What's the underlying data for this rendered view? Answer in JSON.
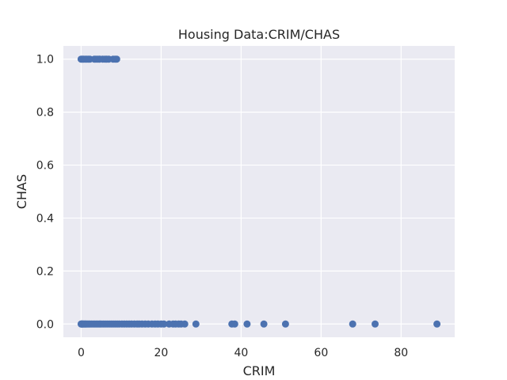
{
  "chart_data": {
    "type": "scatter",
    "title": "Housing Data:CRIM/CHAS",
    "xlabel": "CRIM",
    "ylabel": "CHAS",
    "xlim": [
      -4.44,
      93.41
    ],
    "ylim": [
      -0.05,
      1.05
    ],
    "xticks": [
      0,
      20,
      40,
      60,
      80
    ],
    "yticks": [
      0.0,
      0.2,
      0.4,
      0.6,
      0.8,
      1.0
    ],
    "xtick_labels": [
      "0",
      "20",
      "40",
      "60",
      "80"
    ],
    "ytick_labels": [
      "0.0",
      "0.2",
      "0.4",
      "0.6",
      "0.8",
      "1.0"
    ],
    "grid": true,
    "background": "#eaeaf2",
    "grid_color": "#ffffff",
    "marker_color": "#4c72b0",
    "points": [
      [
        0.0,
        1
      ],
      [
        0.3,
        1
      ],
      [
        0.6,
        1
      ],
      [
        1.0,
        1
      ],
      [
        1.4,
        1
      ],
      [
        1.8,
        1
      ],
      [
        2.2,
        1
      ],
      [
        3.3,
        1
      ],
      [
        3.7,
        1
      ],
      [
        4.2,
        1
      ],
      [
        4.6,
        1
      ],
      [
        5.4,
        1
      ],
      [
        6.0,
        1
      ],
      [
        6.4,
        1
      ],
      [
        6.9,
        1
      ],
      [
        8.0,
        1
      ],
      [
        8.5,
        1
      ],
      [
        8.9,
        1
      ],
      [
        0.0,
        0
      ],
      [
        0.1,
        0
      ],
      [
        0.2,
        0
      ],
      [
        0.3,
        0
      ],
      [
        0.5,
        0
      ],
      [
        0.7,
        0
      ],
      [
        0.9,
        0
      ],
      [
        1.1,
        0
      ],
      [
        1.3,
        0
      ],
      [
        1.6,
        0
      ],
      [
        1.9,
        0
      ],
      [
        2.2,
        0
      ],
      [
        2.6,
        0
      ],
      [
        3.0,
        0
      ],
      [
        3.4,
        0
      ],
      [
        3.8,
        0
      ],
      [
        4.2,
        0
      ],
      [
        4.6,
        0
      ],
      [
        5.0,
        0
      ],
      [
        5.5,
        0
      ],
      [
        6.0,
        0
      ],
      [
        6.5,
        0
      ],
      [
        7.0,
        0
      ],
      [
        7.5,
        0
      ],
      [
        8.0,
        0
      ],
      [
        8.5,
        0
      ],
      [
        9.0,
        0
      ],
      [
        9.5,
        0
      ],
      [
        10.2,
        0
      ],
      [
        10.8,
        0
      ],
      [
        11.4,
        0
      ],
      [
        12.0,
        0
      ],
      [
        12.6,
        0
      ],
      [
        13.3,
        0
      ],
      [
        14.0,
        0
      ],
      [
        14.5,
        0
      ],
      [
        15.2,
        0
      ],
      [
        16.0,
        0
      ],
      [
        16.8,
        0
      ],
      [
        17.7,
        0
      ],
      [
        18.5,
        0
      ],
      [
        19.2,
        0
      ],
      [
        20.0,
        0
      ],
      [
        20.7,
        0
      ],
      [
        22.0,
        0
      ],
      [
        23.0,
        0
      ],
      [
        23.6,
        0
      ],
      [
        24.4,
        0
      ],
      [
        25.0,
        0
      ],
      [
        25.9,
        0
      ],
      [
        28.7,
        0
      ],
      [
        37.7,
        0
      ],
      [
        38.4,
        0
      ],
      [
        41.5,
        0
      ],
      [
        45.7,
        0
      ],
      [
        51.1,
        0
      ],
      [
        67.9,
        0
      ],
      [
        73.5,
        0
      ],
      [
        88.98,
        0
      ]
    ]
  }
}
